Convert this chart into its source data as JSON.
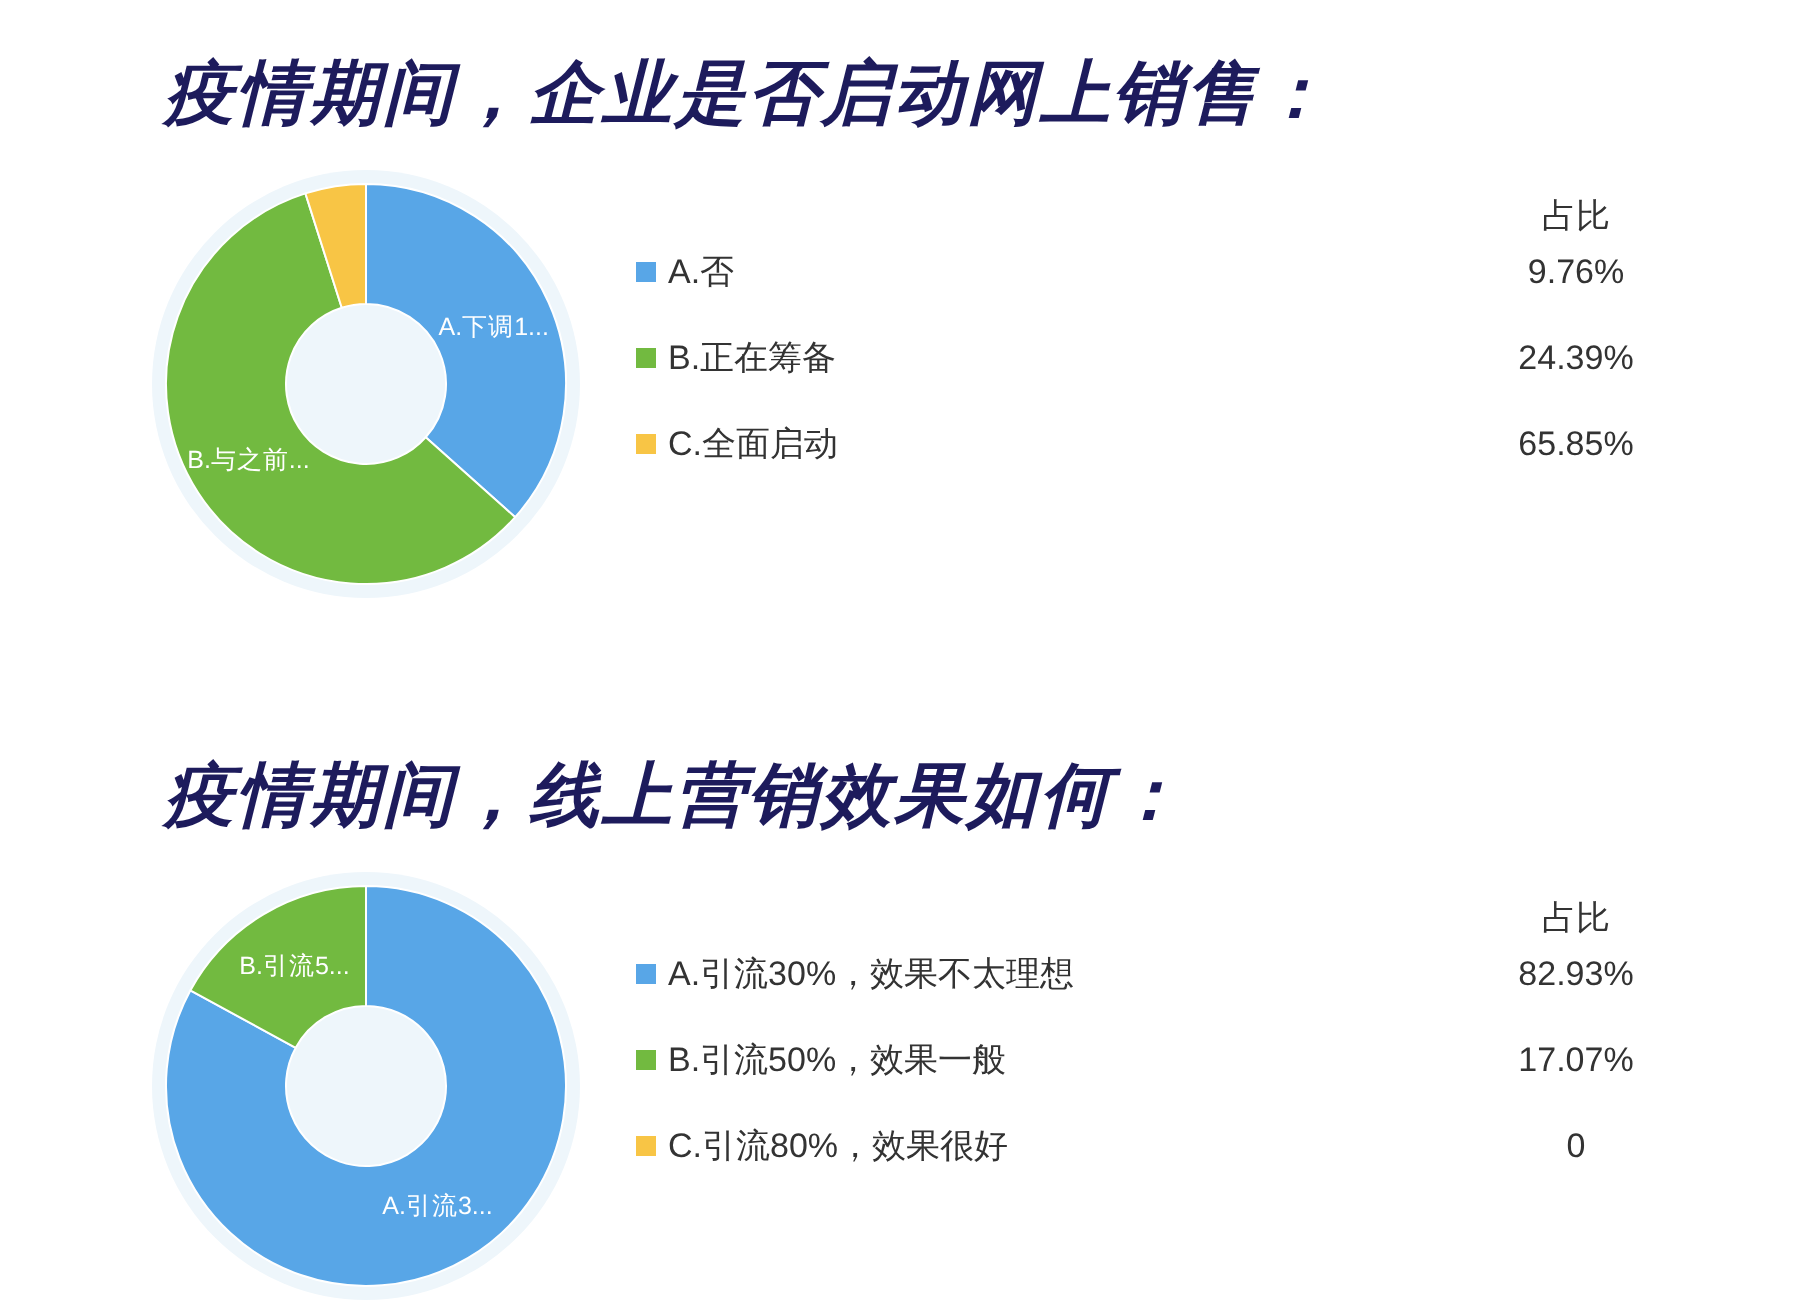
{
  "chart_data": [
    {
      "type": "donut",
      "title": "疫情期间，企业是否启动网上销售：",
      "categories": [
        "A.否",
        "B.正在筹备",
        "C.全面启动"
      ],
      "values": [
        36.6,
        58.5,
        4.9
      ],
      "colors": [
        "#58a6e7",
        "#72ba40",
        "#f8c545"
      ],
      "value_labels": [
        "A.下调1...",
        "B.与之前...",
        null
      ],
      "legend": "right",
      "annotations": [
        "占比",
        "9.76%",
        "24.39%",
        "65.85%"
      ]
    },
    {
      "type": "donut",
      "title": "疫情期间，线上营销效果如何：",
      "categories": [
        "A.引流30%，效果不太理想",
        "B.引流50%，效果一般",
        "C.引流80%，效果很好"
      ],
      "values": [
        82.93,
        17.07,
        0
      ],
      "colors": [
        "#58a6e7",
        "#72ba40",
        "#f8c545"
      ],
      "value_labels": [
        "A.引流3...",
        "B.引流5...",
        null
      ],
      "legend": "right",
      "annotations": [
        "占比",
        "82.93%",
        "17.07%",
        "0"
      ]
    }
  ]
}
